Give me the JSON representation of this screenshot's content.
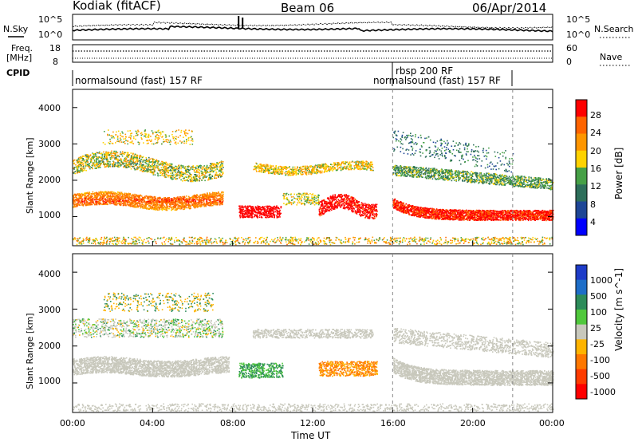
{
  "header": {
    "title": "Kodiak (fitACF)",
    "beam": "Beam 06",
    "date": "06/Apr/2014"
  },
  "noise_panel": {
    "left_label": "N.Sky",
    "left_ticks": [
      "10^5",
      "10^0"
    ],
    "right_label": "N.Search",
    "right_ticks": [
      "10^5",
      "10^0"
    ]
  },
  "freq_panel": {
    "left_label_1": "Freq.",
    "left_label_2": "[MHz]",
    "left_ticks": [
      "18",
      "8"
    ],
    "right_label": "Nave",
    "right_ticks": [
      "60",
      "0"
    ]
  },
  "cpid_panel": {
    "label": "CPID",
    "segments": [
      "normalsound (fast) 157 RF",
      "rbsp 200 RF",
      "normalsound (fast) 157 RF"
    ]
  },
  "x_axis": {
    "label": "Time UT",
    "ticks": [
      "00:00",
      "04:00",
      "08:00",
      "12:00",
      "16:00",
      "20:00",
      "00:00"
    ]
  },
  "chart_data": [
    {
      "type": "heatmap",
      "title": "Power",
      "xlabel": "Time UT",
      "ylabel": "Slant Range [km]",
      "x_ticks": [
        "00:00",
        "04:00",
        "08:00",
        "12:00",
        "16:00",
        "20:00",
        "00:00"
      ],
      "y_ticks": [
        1000,
        2000,
        3000,
        4000
      ],
      "ylim": [
        200,
        4500
      ],
      "colorbar": {
        "label": "Power [dB]",
        "tick_labels": [
          "28",
          "24",
          "20",
          "16",
          "12",
          "8",
          "4"
        ],
        "colors": [
          "#ff0000",
          "#ff6400",
          "#ff9600",
          "#ffd200",
          "#46a046",
          "#2d6e5a",
          "#1e4696",
          "#0000ff"
        ]
      },
      "scatter_bands_km": [
        {
          "t": "00:00-07:30",
          "range_center": 1450,
          "power_db": 22
        },
        {
          "t": "08:30-10:30",
          "range_center": 1150,
          "power_db": 30
        },
        {
          "t": "12:30-15:00",
          "range_center": 1300,
          "power_db": 28
        },
        {
          "t": "16:00-24:00",
          "range_center": 1050,
          "power_db": 26
        },
        {
          "t": "00:00-07:30",
          "range_center": 2400,
          "power_db": 12
        },
        {
          "t": "16:00-24:00",
          "range_center": 2000,
          "power_db": 10
        }
      ]
    },
    {
      "type": "heatmap",
      "title": "Velocity",
      "xlabel": "Time UT",
      "ylabel": "Slant Range [km]",
      "x_ticks": [
        "00:00",
        "04:00",
        "08:00",
        "12:00",
        "16:00",
        "20:00",
        "00:00"
      ],
      "y_ticks": [
        1000,
        2000,
        3000,
        4000
      ],
      "ylim": [
        200,
        4500
      ],
      "colorbar": {
        "label": "Velocity [m s^-1]",
        "tick_labels": [
          "1000",
          "500",
          "100",
          "25",
          "-25",
          "-100",
          "-500",
          "-1000"
        ],
        "colors": [
          "#1e3cc8",
          "#1e6ec8",
          "#2d8c5a",
          "#50c83c",
          "#c8c8bc",
          "#ffb400",
          "#ff7800",
          "#ff3c00",
          "#ff0000"
        ]
      }
    }
  ]
}
